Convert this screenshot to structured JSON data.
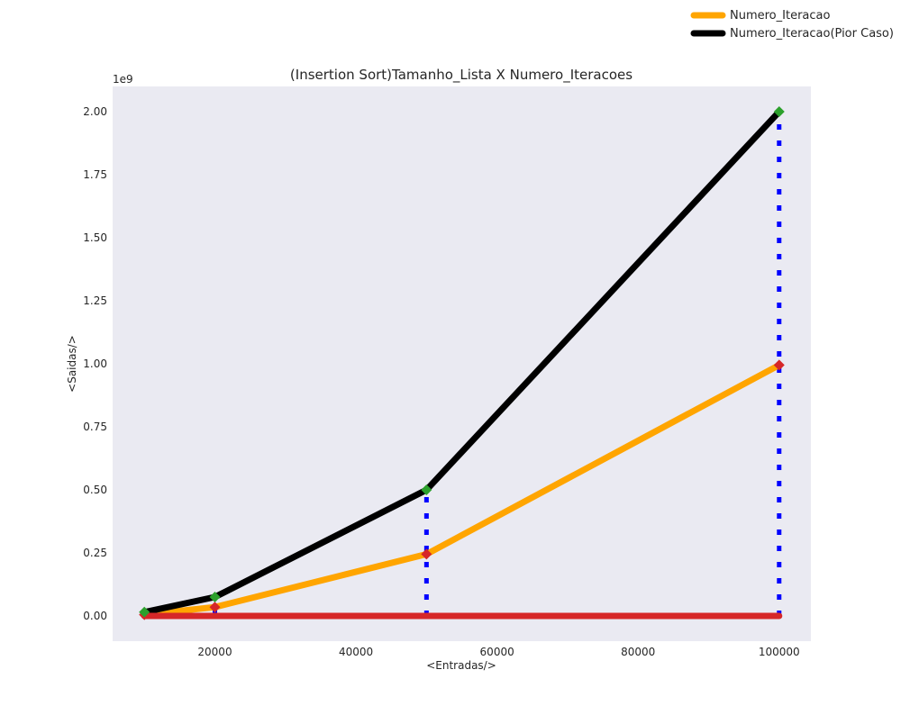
{
  "chart_data": {
    "type": "line",
    "title": "(Insertion Sort)Tamanho_Lista X Numero_Iteracoes",
    "xlabel": "<Entradas/>",
    "ylabel": "<Saidas/>",
    "y_offset_label": "1e9",
    "xlim": [
      5500,
      104500
    ],
    "ylim": [
      -0.1,
      2.1
    ],
    "x_ticks": [
      20000,
      40000,
      60000,
      80000,
      100000
    ],
    "x_tick_labels": [
      "20000",
      "40000",
      "60000",
      "80000",
      "100000"
    ],
    "y_ticks": [
      0.0,
      0.25,
      0.5,
      0.75,
      1.0,
      1.25,
      1.5,
      1.75,
      2.0
    ],
    "y_tick_labels": [
      "0.00",
      "0.25",
      "0.50",
      "0.75",
      "1.00",
      "1.25",
      "1.50",
      "1.75",
      "2.00"
    ],
    "grid": false,
    "legend_position": "top-right, outside plot",
    "background_color": "#eaeaf2",
    "x": [
      10000,
      20000,
      50000,
      100000
    ],
    "series": [
      {
        "name": "Numero_Iteracao",
        "values": [
          0.005,
          0.035,
          0.245,
          0.995
        ],
        "color": "#ffa500",
        "marker_color": "#d62728",
        "legend": true
      },
      {
        "name": "Numero_Iteracao(Pior Caso)",
        "values": [
          0.015,
          0.075,
          0.5,
          2.0
        ],
        "color": "#000000",
        "marker_color": "#2ca02c",
        "legend": true
      },
      {
        "values": [
          0.0,
          0.0,
          0.0,
          0.0
        ],
        "color": "#d62728",
        "legend": false
      }
    ],
    "dotted_verticals": {
      "color": "#0000ff",
      "x": [
        10000,
        20000,
        50000,
        100000
      ],
      "top": [
        0.015,
        0.075,
        0.5,
        2.0
      ]
    }
  }
}
